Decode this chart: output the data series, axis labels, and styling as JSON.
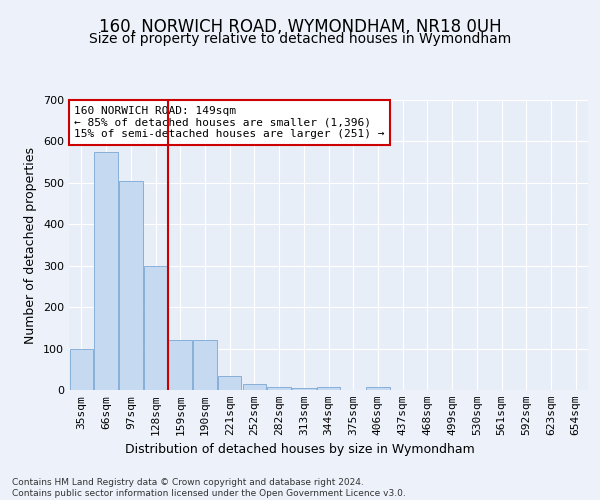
{
  "title": "160, NORWICH ROAD, WYMONDHAM, NR18 0UH",
  "subtitle": "Size of property relative to detached houses in Wymondham",
  "xlabel": "Distribution of detached houses by size in Wymondham",
  "ylabel": "Number of detached properties",
  "categories": [
    "35sqm",
    "66sqm",
    "97sqm",
    "128sqm",
    "159sqm",
    "190sqm",
    "221sqm",
    "252sqm",
    "282sqm",
    "313sqm",
    "344sqm",
    "375sqm",
    "406sqm",
    "437sqm",
    "468sqm",
    "499sqm",
    "530sqm",
    "561sqm",
    "592sqm",
    "623sqm",
    "654sqm"
  ],
  "values": [
    100,
    575,
    505,
    300,
    120,
    120,
    35,
    15,
    8,
    5,
    8,
    0,
    8,
    0,
    0,
    0,
    0,
    0,
    0,
    0,
    0
  ],
  "bar_color": "#c5d9f0",
  "bar_edge_color": "#7ba7d4",
  "vline_color": "#cc0000",
  "annotation_text": "160 NORWICH ROAD: 149sqm\n← 85% of detached houses are smaller (1,396)\n15% of semi-detached houses are larger (251) →",
  "annotation_box_color": "#ffffff",
  "annotation_box_edge": "#cc0000",
  "ylim": [
    0,
    700
  ],
  "yticks": [
    0,
    100,
    200,
    300,
    400,
    500,
    600,
    700
  ],
  "footer_text": "Contains HM Land Registry data © Crown copyright and database right 2024.\nContains public sector information licensed under the Open Government Licence v3.0.",
  "bg_color": "#edf2fa",
  "plot_bg_color": "#e8eef8",
  "grid_color": "#ffffff",
  "title_fontsize": 12,
  "subtitle_fontsize": 10,
  "label_fontsize": 9,
  "tick_fontsize": 8,
  "footer_fontsize": 6.5
}
